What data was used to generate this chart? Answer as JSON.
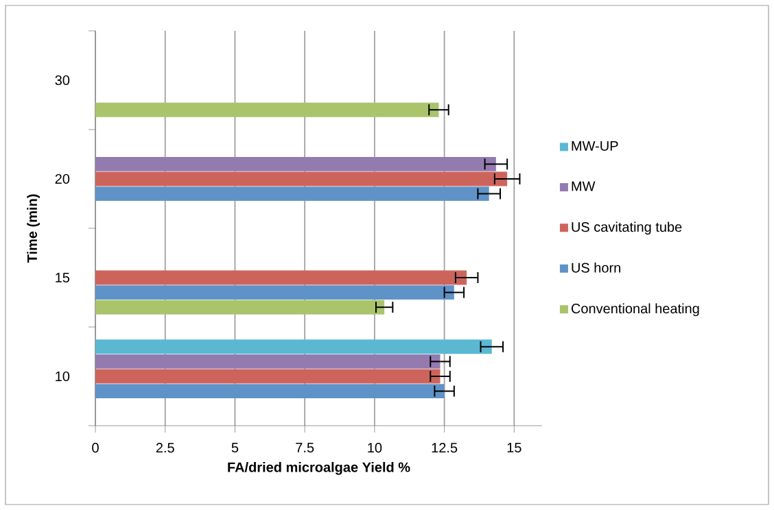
{
  "chart_data": {
    "type": "bar",
    "orientation": "horizontal",
    "categories": [
      "30",
      "20",
      "15",
      "10"
    ],
    "xlabel": "FA/dried microalgae Yield %",
    "ylabel": "Time (min)",
    "xlim": [
      0,
      16
    ],
    "xticks": [
      0,
      2.5,
      5,
      7.5,
      10,
      12.5,
      15
    ],
    "grid": "x",
    "legend": "right",
    "series": [
      {
        "name": "Conventional heating",
        "color": "#a9c46b",
        "values": [
          12.3,
          null,
          10.35,
          null
        ],
        "errors": [
          0.35,
          null,
          0.3,
          null
        ]
      },
      {
        "name": "US horn",
        "color": "#5f93c8",
        "values": [
          null,
          14.1,
          12.85,
          12.5
        ],
        "errors": [
          null,
          0.4,
          0.35,
          0.35
        ]
      },
      {
        "name": "US cavitating tube",
        "color": "#cd645c",
        "values": [
          null,
          14.75,
          13.3,
          12.35
        ],
        "errors": [
          null,
          0.45,
          0.4,
          0.35
        ]
      },
      {
        "name": "MW",
        "color": "#937bb0",
        "values": [
          null,
          14.35,
          null,
          12.35
        ],
        "errors": [
          null,
          0.4,
          null,
          0.35
        ]
      },
      {
        "name": "MW-UP",
        "color": "#5bb8d2",
        "values": [
          null,
          null,
          null,
          14.2
        ],
        "errors": [
          null,
          null,
          null,
          0.4
        ]
      }
    ]
  }
}
